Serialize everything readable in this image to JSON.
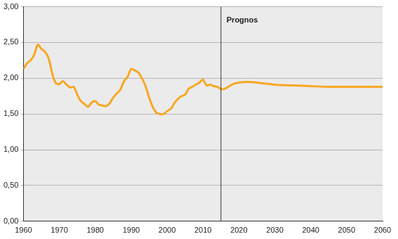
{
  "chart_data": {
    "type": "line",
    "x": [
      1960,
      1961,
      1962,
      1963,
      1964,
      1965,
      1966,
      1967,
      1968,
      1969,
      1970,
      1971,
      1972,
      1973,
      1974,
      1975,
      1976,
      1977,
      1978,
      1979,
      1980,
      1981,
      1982,
      1983,
      1984,
      1985,
      1986,
      1987,
      1988,
      1989,
      1990,
      1991,
      1992,
      1993,
      1994,
      1995,
      1996,
      1997,
      1998,
      1999,
      2000,
      2001,
      2002,
      2003,
      2004,
      2005,
      2006,
      2007,
      2008,
      2009,
      2010,
      2011,
      2012,
      2013,
      2014,
      2015,
      2016,
      2017,
      2018,
      2019,
      2020,
      2022,
      2025,
      2030,
      2035,
      2040,
      2045,
      2050,
      2055,
      2060
    ],
    "series": [
      {
        "color": "#f7a823",
        "values": [
          2.13,
          2.21,
          2.25,
          2.33,
          2.47,
          2.41,
          2.37,
          2.28,
          2.07,
          1.93,
          1.92,
          1.96,
          1.91,
          1.87,
          1.88,
          1.77,
          1.68,
          1.64,
          1.6,
          1.66,
          1.68,
          1.63,
          1.62,
          1.61,
          1.65,
          1.73,
          1.79,
          1.84,
          1.96,
          2.02,
          2.13,
          2.11,
          2.08,
          2.0,
          1.89,
          1.73,
          1.6,
          1.52,
          1.5,
          1.5,
          1.54,
          1.57,
          1.65,
          1.71,
          1.75,
          1.77,
          1.85,
          1.88,
          1.91,
          1.94,
          1.98,
          1.9,
          1.91,
          1.89,
          1.88,
          1.85,
          1.85,
          1.88,
          1.91,
          1.93,
          1.94,
          1.95,
          1.94,
          1.91,
          1.9,
          1.89,
          1.88,
          1.88,
          1.88,
          1.88
        ]
      }
    ],
    "xlim": [
      1960,
      2060
    ],
    "xticks": [
      1960,
      1970,
      1980,
      1990,
      2000,
      2010,
      2020,
      2030,
      2040,
      2050,
      2060
    ],
    "ylim": [
      0,
      3
    ],
    "yticks": [
      {
        "value": 0,
        "label": "0,00"
      },
      {
        "value": 0.5,
        "label": "0,50"
      },
      {
        "value": 1,
        "label": "1,00"
      },
      {
        "value": 1.5,
        "label": "1,50"
      },
      {
        "value": 2,
        "label": "2,00"
      },
      {
        "value": 2.5,
        "label": "2,50"
      },
      {
        "value": 3,
        "label": "3,00"
      }
    ],
    "grid": true,
    "annotations": [
      {
        "x": 2015,
        "text": "Prognos"
      }
    ]
  }
}
